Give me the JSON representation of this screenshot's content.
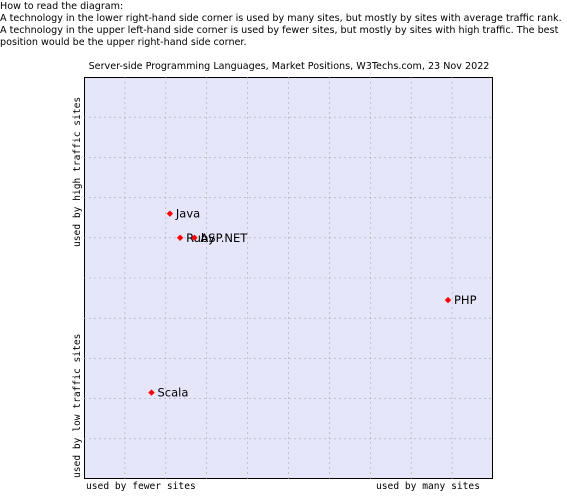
{
  "intro": {
    "heading": "How to read the diagram:",
    "text": "A technology in the lower right-hand side corner is used by many sites, but mostly by sites with average traffic rank. A technology in the upper left-hand side corner is used by fewer sites, but mostly by sites with high traffic. The best position would be the upper right-hand side corner."
  },
  "chart_data": {
    "type": "scatter",
    "title": "Server-side Programming Languages, Market Positions, W3Techs.com, 23 Nov 2022",
    "xlabel_left": "used by fewer sites",
    "xlabel_right": "used by many sites",
    "ylabel_top": "used by high traffic sites",
    "ylabel_bottom": "used by low traffic sites",
    "xlim": [
      0,
      10
    ],
    "ylim": [
      0,
      10
    ],
    "grid": true,
    "marker_color": "#ff0000",
    "background_color": "#e6e6fa",
    "points": [
      {
        "label": "Java",
        "x": 2.1,
        "y": 6.6
      },
      {
        "label": "Ruby",
        "x": 2.35,
        "y": 6.0
      },
      {
        "label": "ASP.NET",
        "x": 2.7,
        "y": 6.0
      },
      {
        "label": "PHP",
        "x": 8.9,
        "y": 4.45
      },
      {
        "label": "Scala",
        "x": 1.65,
        "y": 2.15
      }
    ]
  }
}
